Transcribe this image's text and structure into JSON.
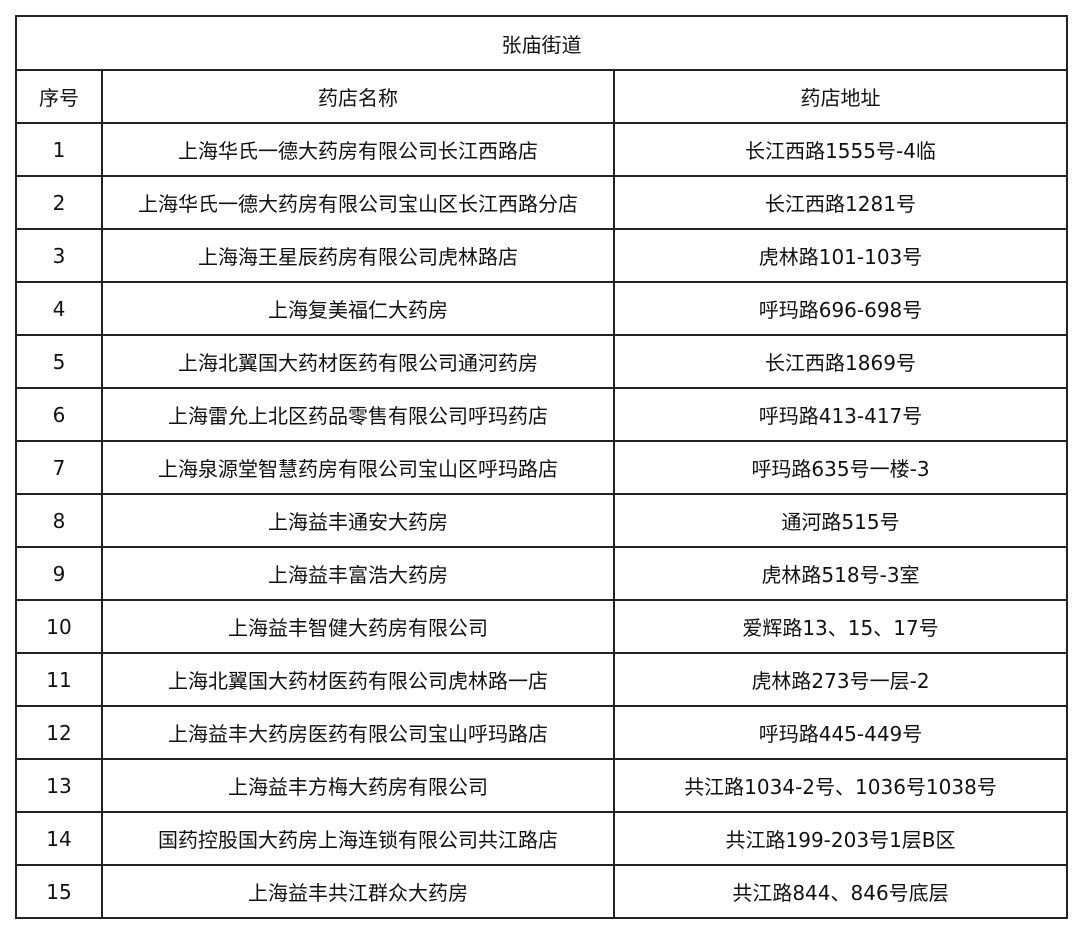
{
  "table": {
    "title": "张庙街道",
    "headers": [
      "序号",
      "药店名称",
      "药店地址"
    ],
    "rows": [
      [
        "1",
        "上海华氏一德大药房有限公司长江西路店",
        "长江西路1555号-4临"
      ],
      [
        "2",
        "上海华氏一德大药房有限公司宝山区长江西路分店",
        "长江西路1281号"
      ],
      [
        "3",
        "上海海王星辰药房有限公司虎林路店",
        "虎林路101-103号"
      ],
      [
        "4",
        "上海复美福仁大药房",
        "呼玛路696-698号"
      ],
      [
        "5",
        "上海北翼国大药材医药有限公司通河药房",
        "长江西路1869号"
      ],
      [
        "6",
        "上海雷允上北区药品零售有限公司呼玛药店",
        "呼玛路413-417号"
      ],
      [
        "7",
        "上海泉源堂智慧药房有限公司宝山区呼玛路店",
        "呼玛路635号一楼-3"
      ],
      [
        "8",
        "上海益丰通安大药房",
        "通河路515号"
      ],
      [
        "9",
        "上海益丰富浩大药房",
        "虎林路518号-3室"
      ],
      [
        "10",
        "上海益丰智健大药房有限公司",
        "爱辉路13、15、17号"
      ],
      [
        "11",
        "上海北翼国大药材医药有限公司虎林路一店",
        "虎林路273号一层-2"
      ],
      [
        "12",
        "上海益丰大药房医药有限公司宝山呼玛路店",
        "呼玛路445-449号"
      ],
      [
        "13",
        "上海益丰方梅大药房有限公司",
        "共江路1034-2号、1036号1038号"
      ],
      [
        "14",
        "国药控股国大药房上海连锁有限公司共江路店",
        "共江路199-203号1层B区"
      ],
      [
        "15",
        "上海益丰共江群众大药房",
        "共江路844、846号底层"
      ]
    ]
  }
}
